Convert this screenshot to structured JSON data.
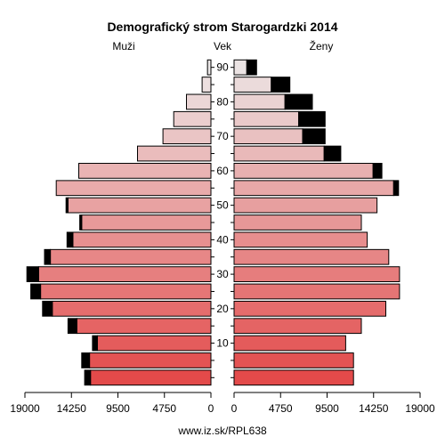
{
  "chart_data": {
    "type": "bar",
    "title": "Demografický strom Starogardzki 2014",
    "left_label": "Muži",
    "center_label": "Vek",
    "right_label": "Ženy",
    "source": "www.iz.sk/RPL638",
    "xlim": [
      0,
      19000
    ],
    "x_ticks": [
      "19000",
      "14250",
      "9500",
      "4750",
      "0",
      "0",
      "4750",
      "9500",
      "14250",
      "19000"
    ],
    "age_ticks": [
      "90",
      "80",
      "70",
      "60",
      "50",
      "40",
      "30",
      "20",
      "10"
    ],
    "age_groups": [
      "0-4",
      "5-9",
      "10-14",
      "15-19",
      "20-24",
      "25-29",
      "30-34",
      "35-39",
      "40-44",
      "45-49",
      "50-54",
      "55-59",
      "60-64",
      "65-69",
      "70-74",
      "75-79",
      "80-84",
      "85-89",
      "90+"
    ],
    "series": [
      {
        "name": "Muži",
        "values": [
          12300,
          12400,
          11600,
          13700,
          16200,
          17400,
          17600,
          16400,
          14100,
          13200,
          14600,
          15800,
          13500,
          7500,
          4900,
          3800,
          2500,
          900,
          350
        ],
        "excess": [
          600,
          800,
          500,
          900,
          1000,
          1000,
          1200,
          600,
          600,
          200,
          200,
          0,
          0,
          0,
          0,
          0,
          0,
          0,
          0
        ]
      },
      {
        "name": "Ženy",
        "values": [
          12200,
          12200,
          11400,
          13000,
          15500,
          16900,
          16900,
          15800,
          13600,
          13000,
          14600,
          16300,
          14200,
          9200,
          7000,
          6600,
          5200,
          3800,
          1300
        ],
        "excess": [
          0,
          0,
          0,
          0,
          0,
          0,
          0,
          0,
          0,
          0,
          0,
          500,
          900,
          1700,
          2300,
          2700,
          2800,
          1900,
          1000
        ]
      }
    ],
    "colors": {
      "male_young": "#e34a4a",
      "male_old": "#ece8e8",
      "female_young": "#e34a4a",
      "female_old": "#ebe3e3",
      "excess": "#000000"
    }
  }
}
